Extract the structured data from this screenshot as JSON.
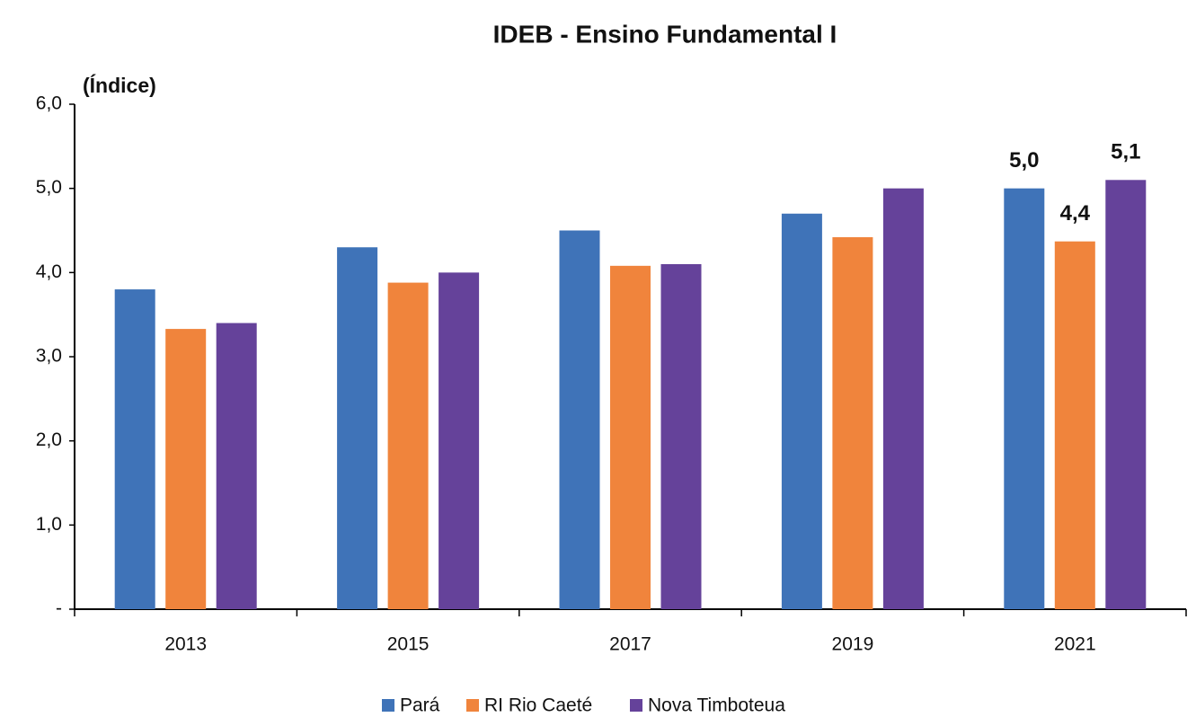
{
  "chart_data": {
    "type": "bar",
    "title": "IDEB - Ensino Fundamental I",
    "y_label": "(Índice)",
    "categories": [
      "2013",
      "2015",
      "2017",
      "2019",
      "2021"
    ],
    "series": [
      {
        "name": "Pará",
        "color": "#3f73b8",
        "values": [
          3.8,
          4.3,
          4.5,
          4.7,
          5.0
        ],
        "value_labels": [
          null,
          null,
          null,
          null,
          "5,0"
        ]
      },
      {
        "name": "RI Rio Caeté",
        "color": "#f0843c",
        "values": [
          3.33,
          3.88,
          4.08,
          4.42,
          4.37
        ],
        "value_labels": [
          null,
          null,
          null,
          null,
          "4,4"
        ]
      },
      {
        "name": "Nova Timboteua",
        "color": "#65429a",
        "values": [
          3.4,
          4.0,
          4.1,
          5.0,
          5.1
        ],
        "value_labels": [
          null,
          null,
          null,
          null,
          "5,1"
        ]
      }
    ],
    "ylim": [
      0,
      6
    ],
    "yticks": [
      {
        "value": 0,
        "label": "-"
      },
      {
        "value": 1,
        "label": "1,0"
      },
      {
        "value": 2,
        "label": "2,0"
      },
      {
        "value": 3,
        "label": "3,0"
      },
      {
        "value": 4,
        "label": "4,0"
      },
      {
        "value": 5,
        "label": "5,0"
      },
      {
        "value": 6,
        "label": "6,0"
      }
    ],
    "grid": false,
    "legend": "bottom"
  }
}
